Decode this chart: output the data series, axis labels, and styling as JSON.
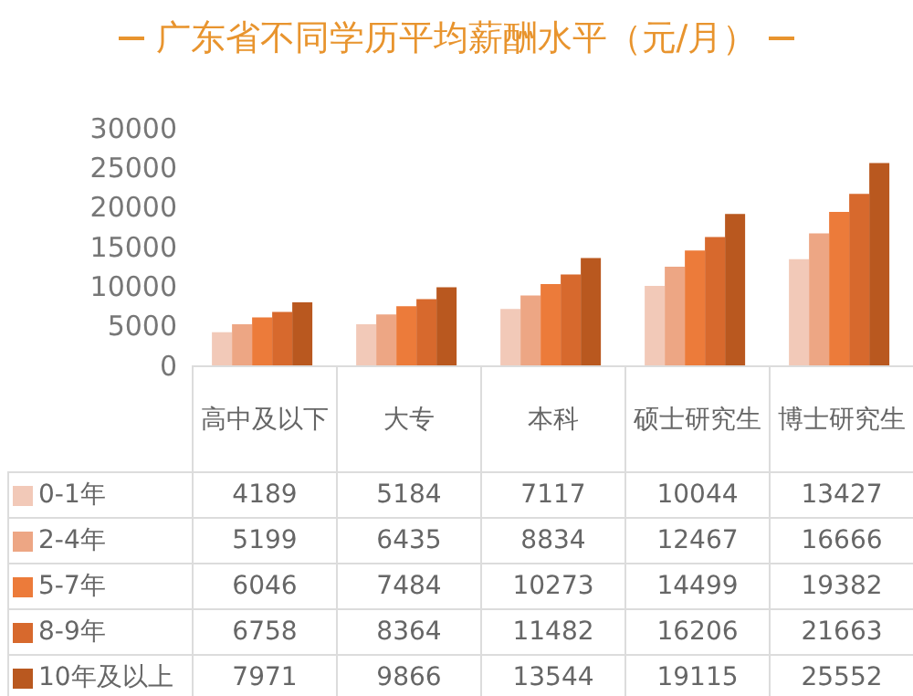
{
  "chart_data": {
    "type": "bar",
    "title": "广东省不同学历平均薪酬水平（元/月）",
    "categories": [
      "高中及以下",
      "大专",
      "本科",
      "硕士研究生",
      "博士研究生"
    ],
    "series": [
      {
        "name": "0-1年",
        "color": "#f2c9b8",
        "values": [
          4189,
          5184,
          7117,
          10044,
          13427
        ]
      },
      {
        "name": "2-4年",
        "color": "#eda684",
        "values": [
          5199,
          6435,
          8834,
          12467,
          16666
        ]
      },
      {
        "name": "5-7年",
        "color": "#ec7b3a",
        "values": [
          6046,
          7484,
          10273,
          14499,
          19382
        ]
      },
      {
        "name": "8-9年",
        "color": "#d7692d",
        "values": [
          6758,
          8364,
          11482,
          16206,
          21663
        ]
      },
      {
        "name": "10年及以上",
        "color": "#b9581f",
        "values": [
          7971,
          9866,
          13544,
          19115,
          25552
        ]
      }
    ],
    "ylim": [
      0,
      30000
    ],
    "yticks": [
      0,
      5000,
      10000,
      15000,
      20000,
      25000,
      30000
    ],
    "data_labels": true,
    "legend": "bottom",
    "grid": false
  }
}
